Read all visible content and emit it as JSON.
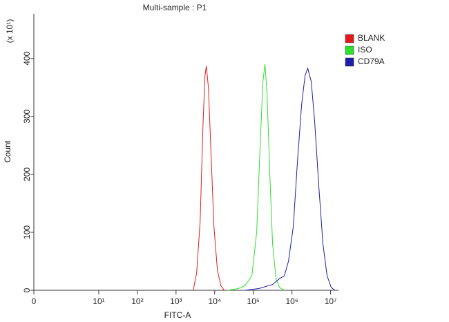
{
  "chart_data": {
    "type": "line",
    "title": "Multi-sample : P1",
    "x_label": "FITC-A",
    "y_label": "Count",
    "y_multiplier": "(x 10¹)",
    "xscale": "biexponential",
    "legend": "top-right",
    "xlim": [
      0,
      16000000
    ],
    "xticks": [
      0,
      {
        "value": 10,
        "label": "10¹"
      },
      {
        "value": 100,
        "label": "10²"
      },
      {
        "value": 1000,
        "label": "10³"
      },
      {
        "value": 10000,
        "label": "10⁴"
      },
      {
        "value": 100000,
        "label": "10⁵"
      },
      {
        "value": 1000000,
        "label": "10⁶"
      },
      {
        "value": 10000000,
        "label": "10⁷"
      }
    ],
    "ylim": [
      0,
      477
    ],
    "yticks": [
      0,
      100,
      200,
      300,
      400
    ],
    "series": [
      {
        "name": "BLANK",
        "color": "#e31a1c",
        "x": [
          2787,
          3421,
          4209,
          4955,
          5611,
          6082,
          6889,
          8113,
          9572,
          11752,
          14425,
          17744
        ],
        "values": [
          0,
          30,
          120,
          280,
          370,
          387,
          350,
          230,
          110,
          35,
          8,
          0
        ]
      },
      {
        "name": "ISO",
        "color": "#2ee02e",
        "x": [
          21780,
          40380,
          60840,
          91860,
          122500,
          150400,
          177500,
          200600,
          227000,
          267500,
          315600,
          387500,
          475500,
          634100
        ],
        "values": [
          0,
          3,
          8,
          25,
          100,
          250,
          360,
          390,
          340,
          200,
          80,
          20,
          5,
          0
        ]
      },
      {
        "name": "CD79A",
        "color": "#1c1ca8",
        "x": [
          60840,
          138400,
          315600,
          475500,
          634100,
          811300,
          1082000,
          1384000,
          1775000,
          2178000,
          2565000,
          3156000,
          3875000,
          4955000,
          6341000,
          8113000,
          10380000,
          12770000
        ],
        "values": [
          0,
          3,
          10,
          20,
          25,
          50,
          110,
          220,
          320,
          370,
          383,
          360,
          290,
          180,
          80,
          25,
          5,
          0
        ]
      }
    ]
  }
}
